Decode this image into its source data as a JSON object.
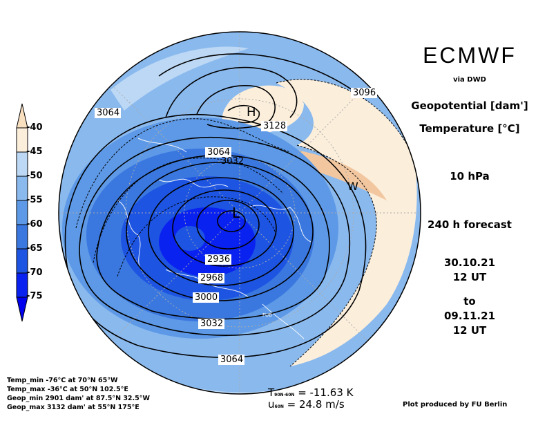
{
  "header": {
    "title": "ECMWF",
    "via": "via DWD",
    "var1": "Geopotential [dam']",
    "var2": "Temperature [°C]",
    "level": "10 hPa",
    "forecast": "240 h forecast",
    "init_date": "30.10.21",
    "init_time": "12 UT",
    "to": "to",
    "valid_date": "09.11.21",
    "valid_time": "12 UT"
  },
  "legend": {
    "ticks": [
      "-40",
      "-45",
      "-50",
      "-55",
      "-60",
      "-65",
      "-70",
      "-75"
    ],
    "colors": [
      "#f7dfbf",
      "#fbeedb",
      "#bcd8f5",
      "#8ab9ee",
      "#5d99e6",
      "#3a78e0",
      "#1d55e2",
      "#0a22f0"
    ]
  },
  "map": {
    "high_label": "H",
    "low_label": "L",
    "warm_label": "W",
    "credit_mark": "FUB",
    "contour_labels": [
      "3064",
      "3096",
      "3128",
      "3064",
      "3032",
      "2936",
      "2968",
      "3000",
      "3032",
      "3064"
    ]
  },
  "stats": {
    "temp_min": "Temp_min -76°C at 70°N 65°W",
    "temp_max": "Temp_max -36°C at 50°N 102.5°E",
    "geop_min": "Geop_min 2901 dam' at 87.5°N 32.5°W",
    "geop_max": "Geop_max 3132 dam' at 55°N 175°E"
  },
  "summary": {
    "t_symbol": "T",
    "t_sub": "90N-60N",
    "t_value": "= -11.63 K",
    "u_symbol": "u",
    "u_sub": "60N",
    "u_value": "= 24.8 m/s"
  },
  "footer": {
    "credit": "Plot produced by FU Berlin"
  }
}
